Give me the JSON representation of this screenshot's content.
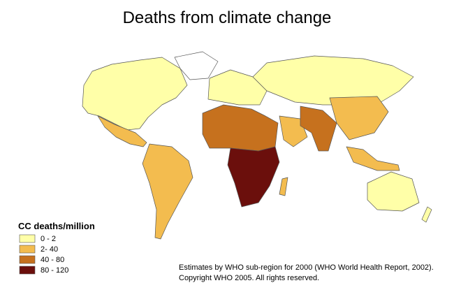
{
  "title": "Deaths from climate change",
  "legend": {
    "title": "CC deaths/million",
    "items": [
      {
        "label": "0 - 2",
        "color": "#ffffa8"
      },
      {
        "label": "2- 40",
        "color": "#f3bc4f"
      },
      {
        "label": "40 - 80",
        "color": "#c6711e"
      },
      {
        "label": "80 - 120",
        "color": "#6b0f0c"
      }
    ]
  },
  "note": [
    "Estimates by WHO sub-region for 2000 (WHO World Health Report, 2002).",
    "Copyright WHO 2005.  All rights reserved."
  ]
}
